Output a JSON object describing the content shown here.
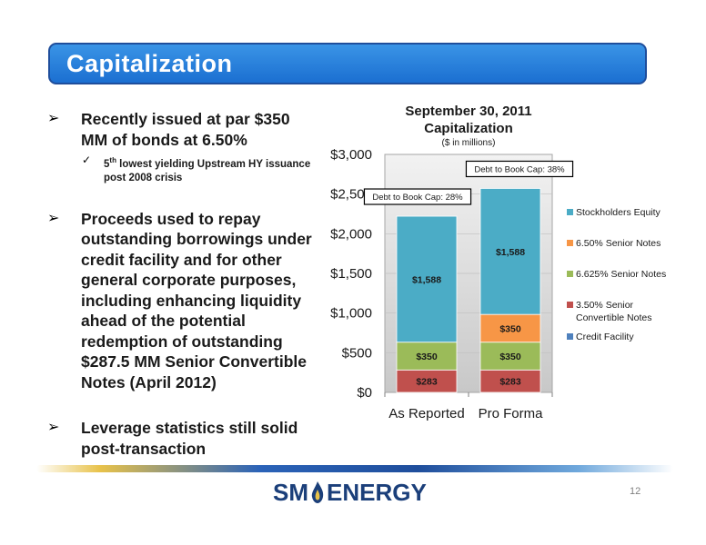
{
  "header": {
    "title": "Capitalization"
  },
  "bullets": [
    {
      "text": "Recently issued at par $350 MM of bonds at 6.50%",
      "sub": {
        "prefix": "5",
        "sup": "th",
        "rest": " lowest yielding Upstream HY issuance post 2008 crisis"
      }
    },
    {
      "text": "Proceeds used to repay outstanding borrowings under credit facility and for other general corporate purposes, including enhancing liquidity ahead of the potential redemption of outstanding $287.5 MM Senior Convertible Notes (April 2012)"
    },
    {
      "text": "Leverage statistics still solid post-transaction"
    }
  ],
  "chart_data": {
    "type": "bar",
    "stacked": true,
    "title": "September 30, 2011 Capitalization",
    "subtitle": "($ in millions)",
    "categories": [
      "As Reported",
      "Pro Forma"
    ],
    "series": [
      {
        "name": "Credit Facility",
        "values": [
          0,
          0
        ],
        "color": "#4f81bd",
        "labels": [
          "",
          ""
        ]
      },
      {
        "name": "3.50% Senior Convertible Notes",
        "values": [
          283,
          283
        ],
        "color": "#c0504d",
        "labels": [
          "$283",
          "$283"
        ]
      },
      {
        "name": "6.625% Senior Notes",
        "values": [
          350,
          350
        ],
        "color": "#9bbb59",
        "labels": [
          "$350",
          "$350"
        ]
      },
      {
        "name": "6.50% Senior Notes",
        "values": [
          0,
          350
        ],
        "color": "#f79646",
        "labels": [
          "",
          "$350"
        ]
      },
      {
        "name": "Stockholders Equity",
        "values": [
          1588,
          1588
        ],
        "color": "#4bacc6",
        "labels": [
          "$1,588",
          "$1,588"
        ]
      }
    ],
    "legend_order": [
      "Stockholders Equity",
      "6.50% Senior Notes",
      "6.625% Senior Notes",
      "3.50% Senior Convertible Notes",
      "Credit Facility"
    ],
    "legend_text": [
      "Stockholders Equity",
      "6.50% Senior Notes",
      "6.625% Senior Notes",
      "3.50% Senior",
      "Convertible Notes",
      "Credit Facility"
    ],
    "ylim": [
      0,
      3000
    ],
    "yticks": [
      0,
      500,
      1000,
      1500,
      2000,
      2500,
      3000
    ],
    "ytick_labels": [
      "$0",
      "$500",
      "$1,000",
      "$1,500",
      "$2,000",
      "$2,500",
      "$3,000"
    ],
    "legend_position": "right",
    "annotations": [
      "Debt to Book Cap: 28%",
      "Debt to Book Cap: 38%"
    ]
  },
  "footer": {
    "logo_left": "SM",
    "logo_right": "ENERGY",
    "page": "12"
  }
}
